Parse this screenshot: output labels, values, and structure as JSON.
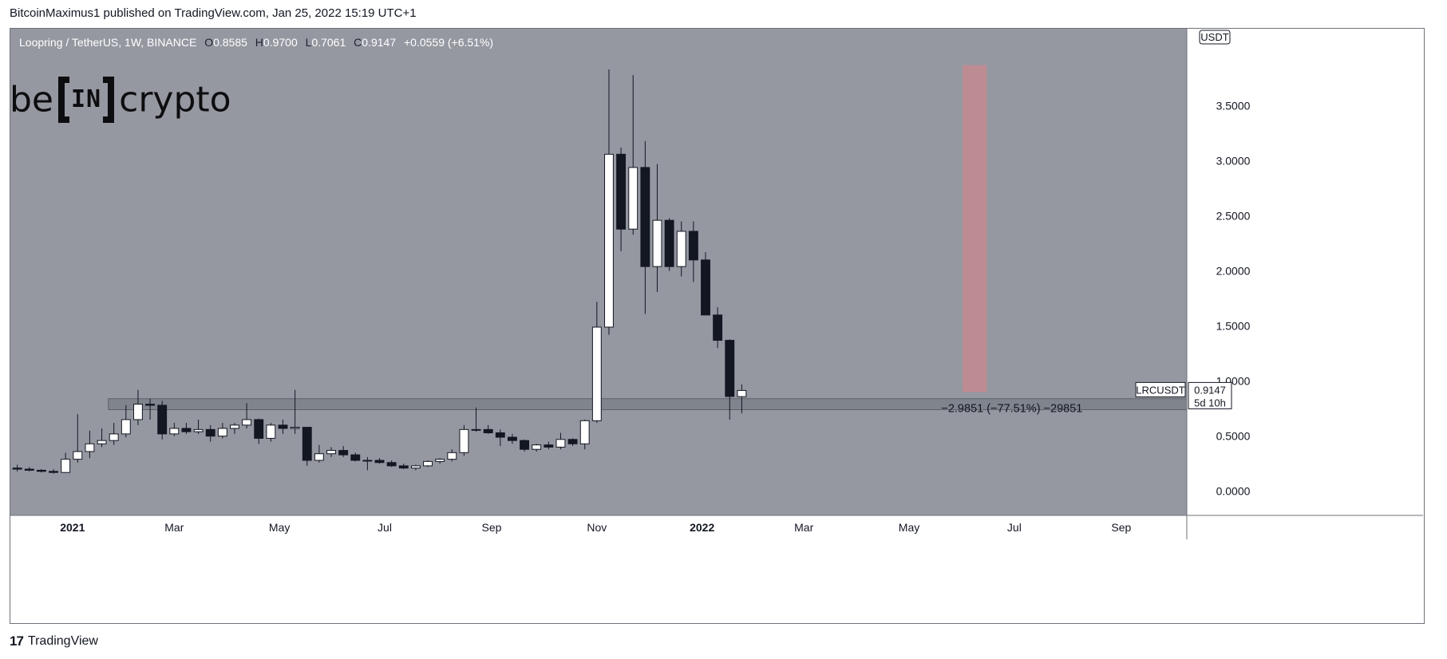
{
  "header": {
    "credit": "BitcoinMaximus1 published on TradingView.com, Jan 25, 2022 15:19 UTC+1"
  },
  "legend": {
    "symbol": "Loopring / TetherUS, 1W, BINANCE",
    "open_label": "O",
    "open": "0.8585",
    "high_label": "H",
    "high": "0.9700",
    "low_label": "L",
    "low": "0.7061",
    "close_label": "C",
    "close": "0.9147",
    "change": "+0.0559 (+6.51%)"
  },
  "logo": {
    "left": "be",
    "box": "IN",
    "right": "crypto"
  },
  "footer": {
    "brand": "TradingView",
    "brand_icon": "tradingview-logo-icon"
  },
  "colors": {
    "plot_bg": "#9598a1",
    "bear": "#131722",
    "bull": "#ffffff",
    "support_zone": "#7a7d85",
    "red_zone": "#c48a8f"
  },
  "chart_data": {
    "type": "candlestick",
    "title": "Loopring / TetherUS, 1W, BINANCE",
    "currency": "USDT",
    "ylim": [
      -0.22,
      4.2
    ],
    "y_ticks": [
      "0.0000",
      "0.5000",
      "1.0000",
      "1.5000",
      "2.0000",
      "2.5000",
      "3.0000",
      "3.5000"
    ],
    "x_ticks": [
      {
        "label": "2021",
        "date": "2021-01-01"
      },
      {
        "label": "Mar",
        "date": "2021-03-01"
      },
      {
        "label": "May",
        "date": "2021-05-01"
      },
      {
        "label": "Jul",
        "date": "2021-07-01"
      },
      {
        "label": "Sep",
        "date": "2021-09-01"
      },
      {
        "label": "Nov",
        "date": "2021-11-01"
      },
      {
        "label": "2022",
        "date": "2022-01-01"
      },
      {
        "label": "Mar",
        "date": "2022-03-01"
      },
      {
        "label": "May",
        "date": "2022-05-01"
      },
      {
        "label": "Jul",
        "date": "2022-07-01"
      },
      {
        "label": "Sep",
        "date": "2022-09-01"
      }
    ],
    "xlim": [
      "2020-11-26",
      "2022-10-09"
    ],
    "candles": [
      {
        "d": "2020-11-30",
        "o": 0.21,
        "h": 0.24,
        "l": 0.18,
        "c": 0.2
      },
      {
        "d": "2020-12-07",
        "o": 0.2,
        "h": 0.22,
        "l": 0.18,
        "c": 0.19
      },
      {
        "d": "2020-12-14",
        "o": 0.19,
        "h": 0.2,
        "l": 0.17,
        "c": 0.18
      },
      {
        "d": "2020-12-21",
        "o": 0.18,
        "h": 0.2,
        "l": 0.16,
        "c": 0.17
      },
      {
        "d": "2020-12-28",
        "o": 0.17,
        "h": 0.35,
        "l": 0.17,
        "c": 0.29
      },
      {
        "d": "2021-01-04",
        "o": 0.29,
        "h": 0.7,
        "l": 0.26,
        "c": 0.36
      },
      {
        "d": "2021-01-11",
        "o": 0.36,
        "h": 0.55,
        "l": 0.3,
        "c": 0.43
      },
      {
        "d": "2021-01-18",
        "o": 0.43,
        "h": 0.57,
        "l": 0.4,
        "c": 0.46
      },
      {
        "d": "2021-01-25",
        "o": 0.46,
        "h": 0.62,
        "l": 0.42,
        "c": 0.52
      },
      {
        "d": "2021-02-01",
        "o": 0.52,
        "h": 0.78,
        "l": 0.49,
        "c": 0.65
      },
      {
        "d": "2021-02-08",
        "o": 0.65,
        "h": 0.92,
        "l": 0.6,
        "c": 0.79
      },
      {
        "d": "2021-02-15",
        "o": 0.79,
        "h": 0.84,
        "l": 0.65,
        "c": 0.78
      },
      {
        "d": "2021-02-22",
        "o": 0.78,
        "h": 0.82,
        "l": 0.47,
        "c": 0.52
      },
      {
        "d": "2021-03-01",
        "o": 0.52,
        "h": 0.62,
        "l": 0.5,
        "c": 0.57
      },
      {
        "d": "2021-03-08",
        "o": 0.57,
        "h": 0.62,
        "l": 0.52,
        "c": 0.54
      },
      {
        "d": "2021-03-15",
        "o": 0.54,
        "h": 0.65,
        "l": 0.52,
        "c": 0.56
      },
      {
        "d": "2021-03-22",
        "o": 0.56,
        "h": 0.6,
        "l": 0.45,
        "c": 0.5
      },
      {
        "d": "2021-03-29",
        "o": 0.5,
        "h": 0.62,
        "l": 0.48,
        "c": 0.57
      },
      {
        "d": "2021-04-05",
        "o": 0.57,
        "h": 0.62,
        "l": 0.52,
        "c": 0.6
      },
      {
        "d": "2021-04-12",
        "o": 0.6,
        "h": 0.8,
        "l": 0.57,
        "c": 0.65
      },
      {
        "d": "2021-04-19",
        "o": 0.65,
        "h": 0.66,
        "l": 0.43,
        "c": 0.48
      },
      {
        "d": "2021-04-26",
        "o": 0.48,
        "h": 0.62,
        "l": 0.45,
        "c": 0.6
      },
      {
        "d": "2021-05-03",
        "o": 0.6,
        "h": 0.65,
        "l": 0.52,
        "c": 0.57
      },
      {
        "d": "2021-05-10",
        "o": 0.57,
        "h": 0.92,
        "l": 0.52,
        "c": 0.58
      },
      {
        "d": "2021-05-17",
        "o": 0.58,
        "h": 0.58,
        "l": 0.23,
        "c": 0.28
      },
      {
        "d": "2021-05-24",
        "o": 0.28,
        "h": 0.42,
        "l": 0.26,
        "c": 0.34
      },
      {
        "d": "2021-05-31",
        "o": 0.34,
        "h": 0.4,
        "l": 0.31,
        "c": 0.37
      },
      {
        "d": "2021-06-07",
        "o": 0.37,
        "h": 0.41,
        "l": 0.31,
        "c": 0.33
      },
      {
        "d": "2021-06-14",
        "o": 0.33,
        "h": 0.35,
        "l": 0.27,
        "c": 0.28
      },
      {
        "d": "2021-06-21",
        "o": 0.28,
        "h": 0.31,
        "l": 0.19,
        "c": 0.28
      },
      {
        "d": "2021-06-28",
        "o": 0.28,
        "h": 0.3,
        "l": 0.25,
        "c": 0.26
      },
      {
        "d": "2021-07-05",
        "o": 0.26,
        "h": 0.28,
        "l": 0.22,
        "c": 0.23
      },
      {
        "d": "2021-07-12",
        "o": 0.23,
        "h": 0.25,
        "l": 0.2,
        "c": 0.21
      },
      {
        "d": "2021-07-19",
        "o": 0.21,
        "h": 0.24,
        "l": 0.19,
        "c": 0.23
      },
      {
        "d": "2021-07-26",
        "o": 0.23,
        "h": 0.28,
        "l": 0.22,
        "c": 0.27
      },
      {
        "d": "2021-08-02",
        "o": 0.27,
        "h": 0.3,
        "l": 0.25,
        "c": 0.29
      },
      {
        "d": "2021-08-09",
        "o": 0.29,
        "h": 0.38,
        "l": 0.27,
        "c": 0.35
      },
      {
        "d": "2021-08-16",
        "o": 0.35,
        "h": 0.6,
        "l": 0.32,
        "c": 0.56
      },
      {
        "d": "2021-08-23",
        "o": 0.56,
        "h": 0.76,
        "l": 0.54,
        "c": 0.56
      },
      {
        "d": "2021-08-30",
        "o": 0.56,
        "h": 0.6,
        "l": 0.52,
        "c": 0.53
      },
      {
        "d": "2021-09-06",
        "o": 0.53,
        "h": 0.56,
        "l": 0.41,
        "c": 0.49
      },
      {
        "d": "2021-09-13",
        "o": 0.49,
        "h": 0.52,
        "l": 0.43,
        "c": 0.46
      },
      {
        "d": "2021-09-20",
        "o": 0.46,
        "h": 0.47,
        "l": 0.36,
        "c": 0.38
      },
      {
        "d": "2021-09-27",
        "o": 0.38,
        "h": 0.43,
        "l": 0.36,
        "c": 0.42
      },
      {
        "d": "2021-10-04",
        "o": 0.42,
        "h": 0.45,
        "l": 0.38,
        "c": 0.4
      },
      {
        "d": "2021-10-11",
        "o": 0.4,
        "h": 0.53,
        "l": 0.38,
        "c": 0.47
      },
      {
        "d": "2021-10-18",
        "o": 0.47,
        "h": 0.48,
        "l": 0.41,
        "c": 0.43
      },
      {
        "d": "2021-10-25",
        "o": 0.43,
        "h": 0.65,
        "l": 0.38,
        "c": 0.64
      },
      {
        "d": "2021-11-01",
        "o": 0.64,
        "h": 1.72,
        "l": 0.62,
        "c": 1.49
      },
      {
        "d": "2021-11-08",
        "o": 1.49,
        "h": 3.83,
        "l": 1.42,
        "c": 3.06
      },
      {
        "d": "2021-11-15",
        "o": 3.06,
        "h": 3.12,
        "l": 2.18,
        "c": 2.38
      },
      {
        "d": "2021-11-22",
        "o": 2.38,
        "h": 3.78,
        "l": 2.33,
        "c": 2.94
      },
      {
        "d": "2021-11-29",
        "o": 2.94,
        "h": 3.18,
        "l": 1.61,
        "c": 2.04
      },
      {
        "d": "2021-12-06",
        "o": 2.04,
        "h": 2.97,
        "l": 1.81,
        "c": 2.46
      },
      {
        "d": "2021-12-13",
        "o": 2.46,
        "h": 2.48,
        "l": 2.0,
        "c": 2.04
      },
      {
        "d": "2021-12-20",
        "o": 2.04,
        "h": 2.45,
        "l": 1.95,
        "c": 2.36
      },
      {
        "d": "2021-12-27",
        "o": 2.36,
        "h": 2.45,
        "l": 1.9,
        "c": 2.1
      },
      {
        "d": "2022-01-03",
        "o": 2.1,
        "h": 2.17,
        "l": 1.6,
        "c": 1.6
      },
      {
        "d": "2022-01-10",
        "o": 1.6,
        "h": 1.67,
        "l": 1.3,
        "c": 1.37
      },
      {
        "d": "2022-01-17",
        "o": 1.37,
        "h": 1.38,
        "l": 0.65,
        "c": 0.86
      },
      {
        "d": "2022-01-24",
        "o": 0.8585,
        "h": 0.97,
        "l": 0.7061,
        "c": 0.9147
      }
    ],
    "annotations": {
      "support_zone": [
        0.74,
        0.84
      ],
      "support_start": "2021-02-01",
      "red_zone": {
        "from": "2022-06-01",
        "to": "2022-06-15",
        "y": [
          0.9,
          3.87
        ]
      },
      "measure_text": "−2.9851 (−77.51%) −29851",
      "measure_x": "2022-01-24",
      "measure_y": 0.72
    },
    "price_label": {
      "symbol": "LRCUSDT",
      "price": "0.9147",
      "countdown": "5d 10h",
      "value": 0.9147
    }
  }
}
